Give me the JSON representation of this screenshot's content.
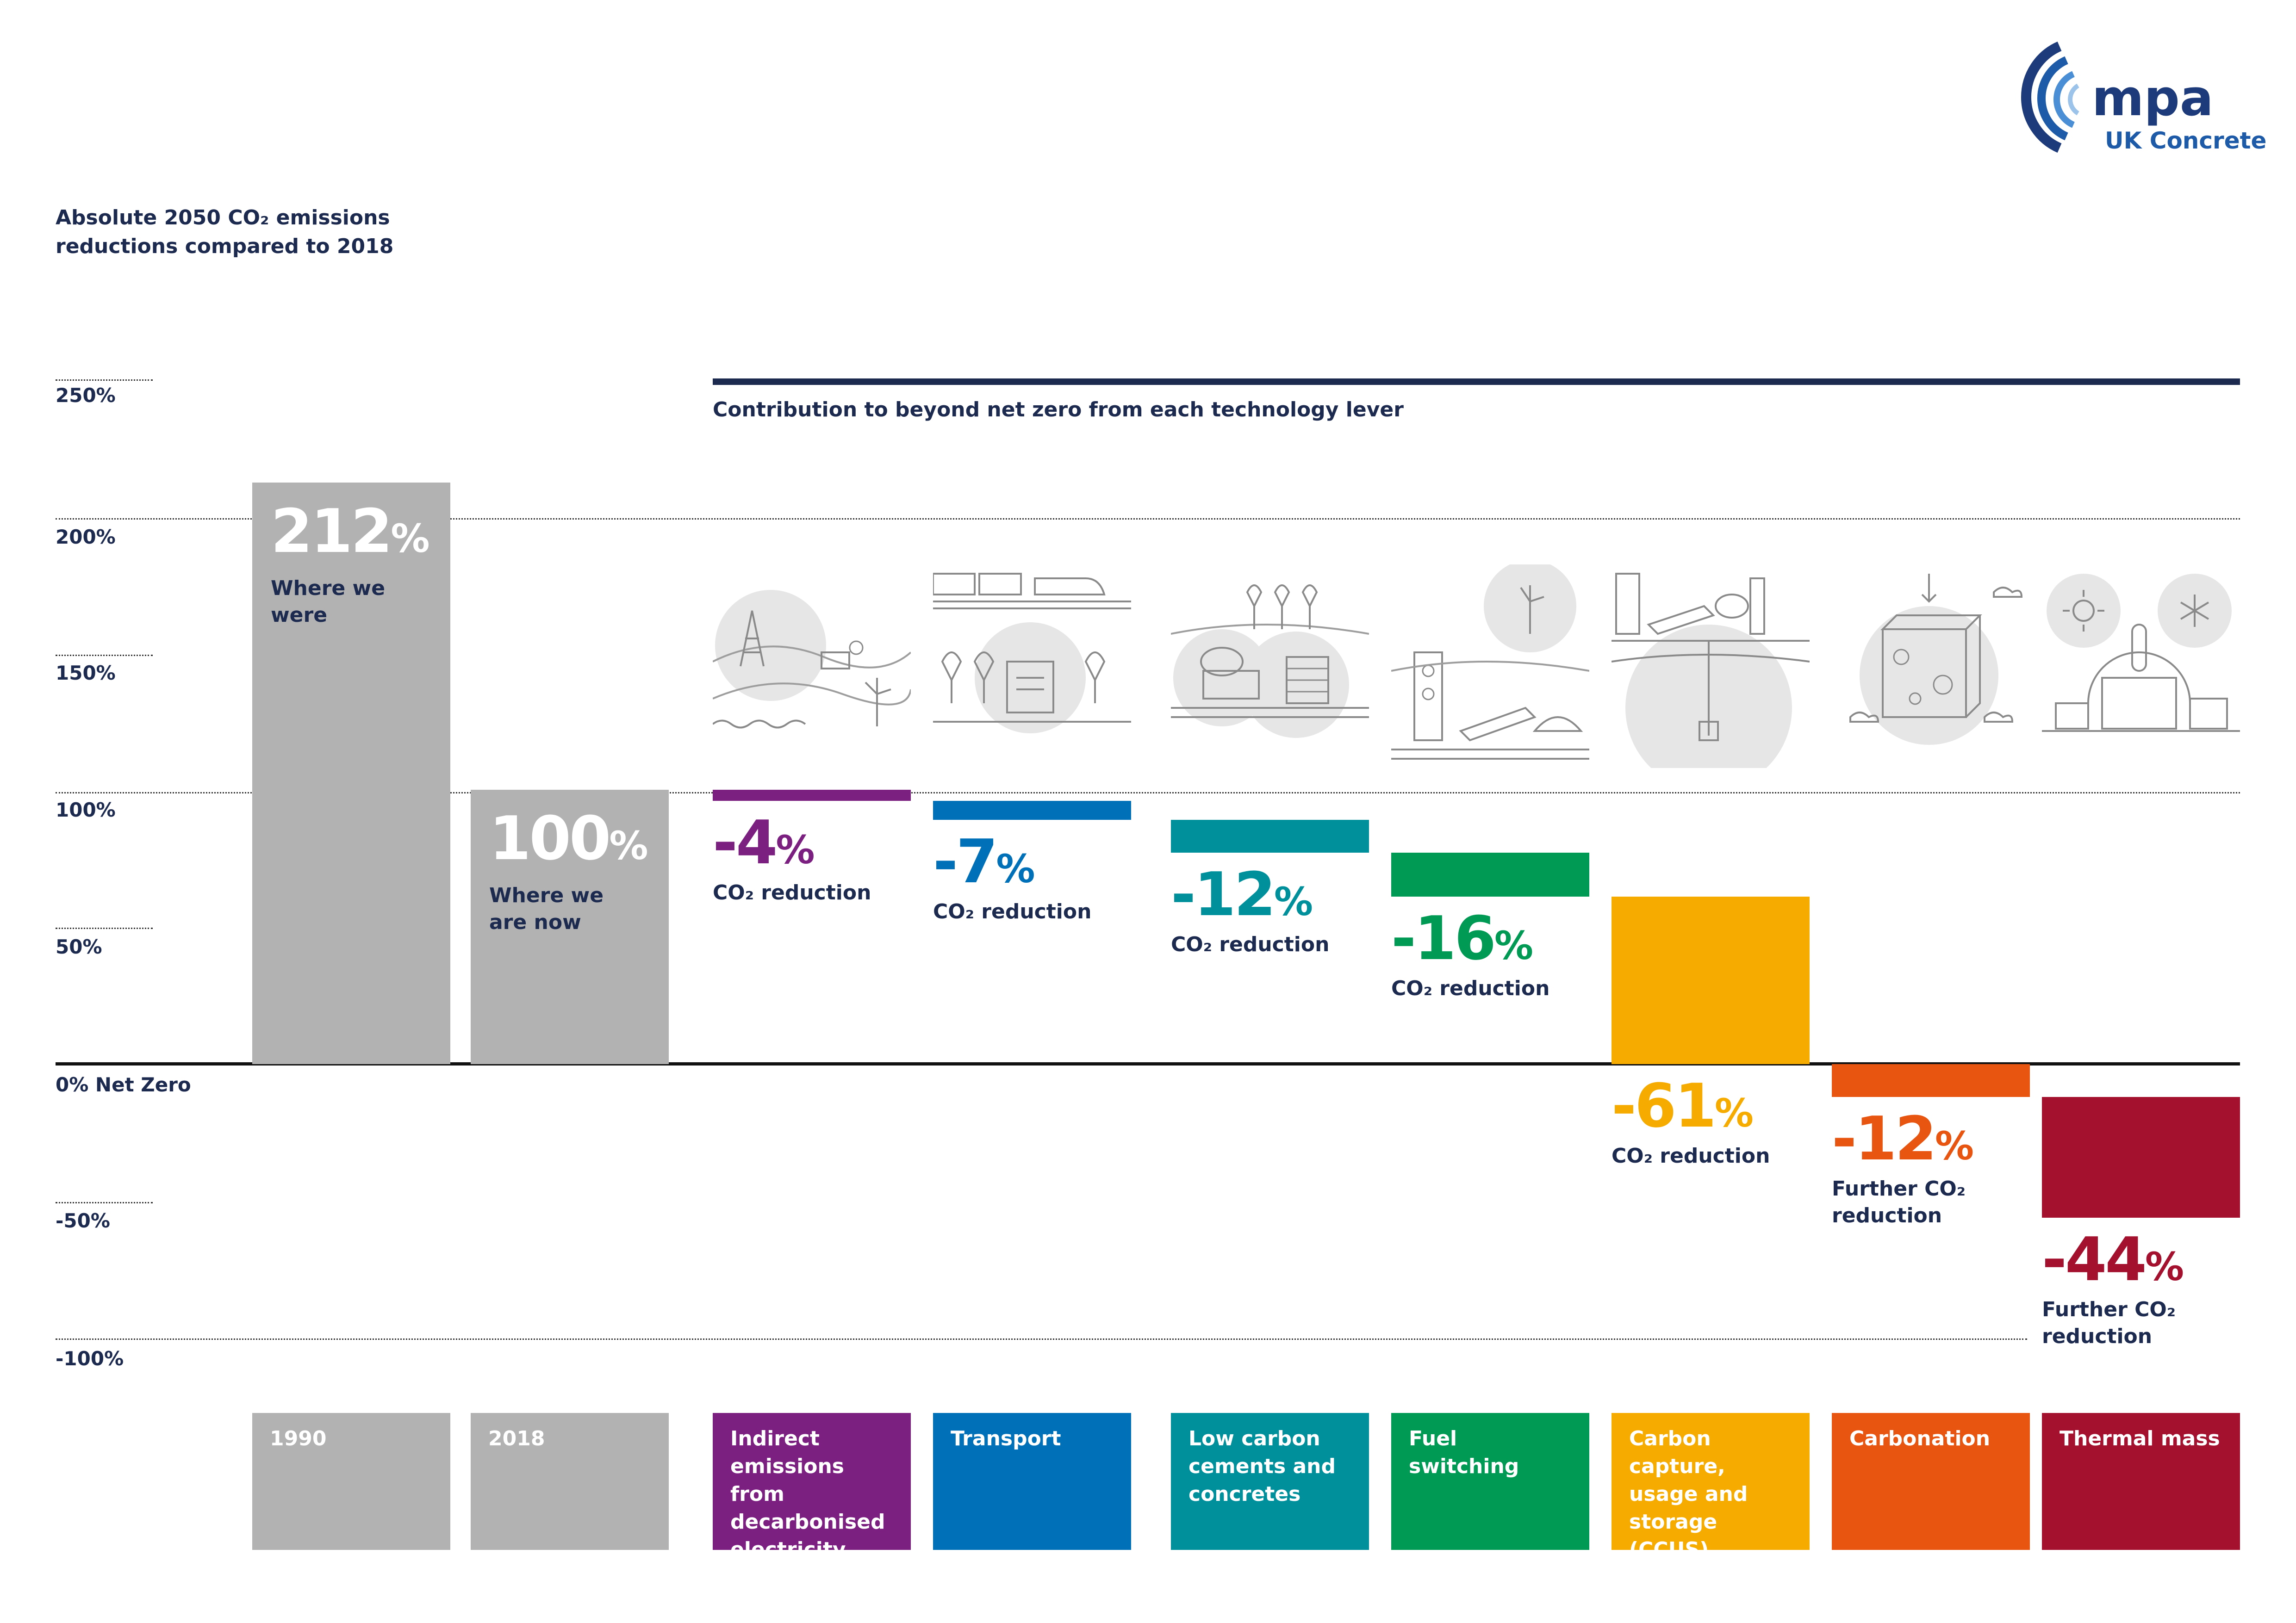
{
  "logo": {
    "word": "mpa",
    "sub": "UK Concrete"
  },
  "yaxis_title": "Absolute 2050 CO₂ emissions reductions compared to 2018",
  "lever_title": "Contribution to beyond net zero from each technology lever",
  "colors": {
    "grey": "#b2b2b2",
    "navy": "#1d2a4f",
    "purple": "#7b1f81",
    "blue": "#0071b9",
    "teal": "#00909c",
    "green": "#009a55",
    "yellow": "#f5ab00",
    "orange": "#e85511",
    "crimson": "#a3112f"
  },
  "chart_data": {
    "type": "bar",
    "style": "waterfall",
    "ylim": [
      -100,
      250
    ],
    "ylabel": "Absolute 2050 CO₂ emissions reductions compared to 2018",
    "ticks": [
      "250%",
      "200%",
      "150%",
      "100%",
      "50%",
      "0% Net Zero",
      "-50%",
      "-100%"
    ],
    "categories": [
      "1990",
      "2018",
      "Indirect emissions from decarbonised electricity",
      "Transport",
      "Low carbon cements and concretes",
      "Fuel switching",
      "Carbon capture, usage and storage (CCUS)",
      "Carbonation",
      "Thermal mass"
    ],
    "values": [
      212,
      100,
      -4,
      -7,
      -12,
      -16,
      -61,
      -12,
      -44
    ],
    "bar_colors": [
      "#b2b2b2",
      "#b2b2b2",
      "#7b1f81",
      "#0071b9",
      "#00909c",
      "#009a55",
      "#f5ab00",
      "#e85511",
      "#a3112f"
    ],
    "value_labels": [
      "212",
      "100",
      "-4",
      "-7",
      "-12",
      "-16",
      "-61",
      "-12",
      "-44"
    ],
    "percent_sign": "%",
    "value_captions": [
      "Where we were",
      "Where we are now",
      "CO₂ reduction",
      "CO₂ reduction",
      "CO₂ reduction",
      "CO₂ reduction",
      "CO₂ reduction",
      "Further CO₂ reduction",
      "Further CO₂ reduction"
    ],
    "grid": true
  }
}
